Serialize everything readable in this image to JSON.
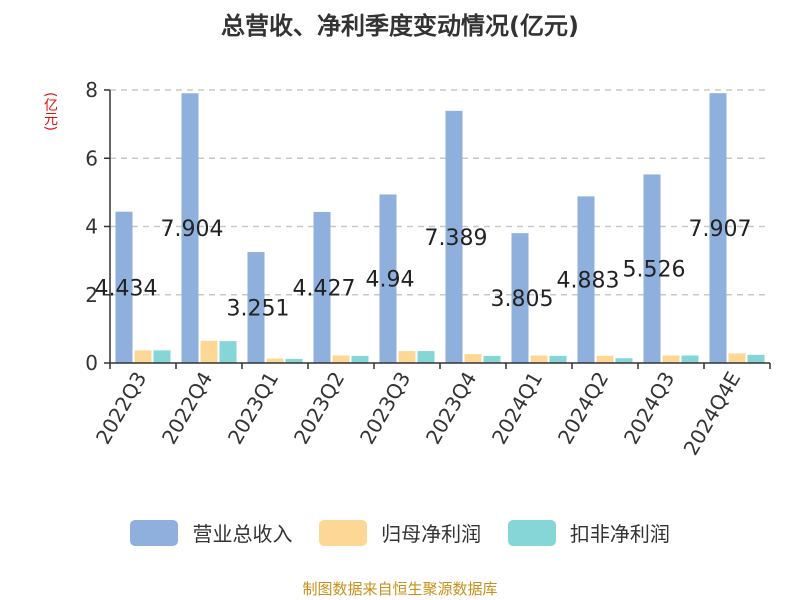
{
  "chart_data": {
    "type": "bar",
    "title": "总营收、净利季度变动情况(亿元)",
    "ylabel": "(亿元)",
    "xlabel": "",
    "ylim": [
      0,
      8
    ],
    "yticks": [
      0,
      2,
      4,
      6,
      8
    ],
    "grid": true,
    "legend_position": "bottom",
    "categories": [
      "2022Q3",
      "2022Q4",
      "2023Q1",
      "2023Q2",
      "2023Q3",
      "2023Q4",
      "2024Q1",
      "2024Q2",
      "2024Q3",
      "2024Q4E"
    ],
    "series": [
      {
        "name": "营业总收入",
        "color": "#8fb0dc",
        "values": [
          4.434,
          7.904,
          3.251,
          4.427,
          4.94,
          7.389,
          3.805,
          4.883,
          5.526,
          7.907
        ],
        "labels": [
          "4.434",
          "7.904",
          "3.251",
          "4.427",
          "4.94",
          "7.389",
          "3.805",
          "4.883",
          "5.526",
          "7.907"
        ]
      },
      {
        "name": "归母净利润",
        "color": "#fdd795",
        "values": [
          0.37,
          0.65,
          0.13,
          0.22,
          0.35,
          0.26,
          0.22,
          0.21,
          0.22,
          0.28
        ]
      },
      {
        "name": "扣非净利润",
        "color": "#86d6d8",
        "values": [
          0.37,
          0.64,
          0.12,
          0.21,
          0.35,
          0.21,
          0.21,
          0.14,
          0.22,
          0.24
        ]
      }
    ],
    "source": "制图数据来自恒生聚源数据库"
  }
}
